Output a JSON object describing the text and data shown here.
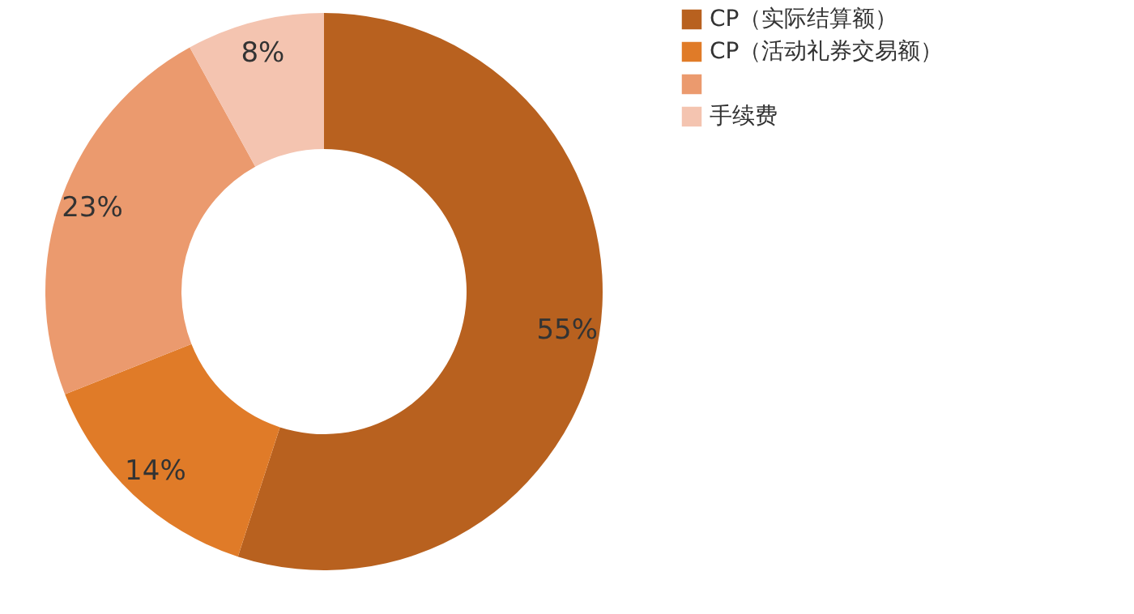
{
  "chart_data": {
    "type": "donut",
    "categories": [
      "CP（实际结算额）",
      "CP（活动礼券交易额）",
      null,
      "手续费"
    ],
    "values": [
      55,
      14,
      23,
      8
    ],
    "colors": [
      "#b8611f",
      "#e07b28",
      "#eb9a6e",
      "#f4c4b0"
    ],
    "value_labels": [
      "55%",
      "14%",
      "23%",
      "8%"
    ],
    "legend": "right"
  }
}
